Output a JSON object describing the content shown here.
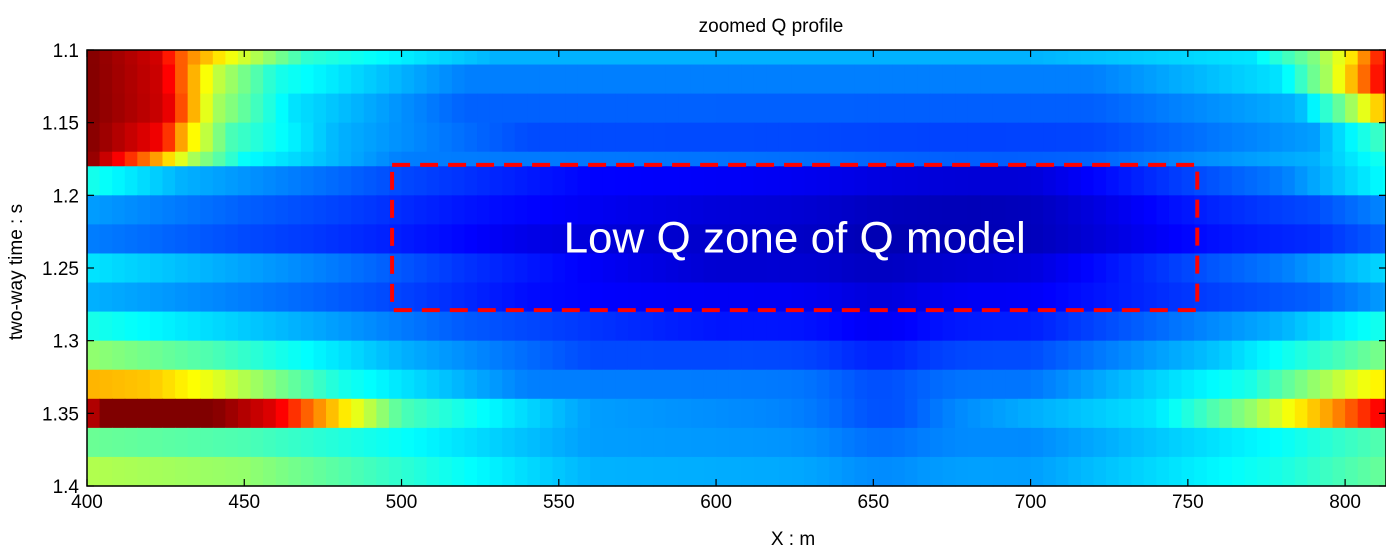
{
  "chart_data": {
    "type": "heatmap",
    "title": "zoomed Q profile",
    "xlabel": "X : m",
    "ylabel": "two-way time : s",
    "xlim": [
      400,
      813
    ],
    "ylim": [
      1.1,
      1.4
    ],
    "y_reversed": true,
    "x_ticks": [
      400,
      450,
      500,
      550,
      600,
      650,
      700,
      750,
      800
    ],
    "x_tick_labels": [
      "400",
      "450",
      "500",
      "550",
      "600",
      "650",
      "700",
      "750",
      "800"
    ],
    "y_ticks": [
      1.1,
      1.15,
      1.2,
      1.25,
      1.3,
      1.35,
      1.4
    ],
    "y_tick_labels": [
      "1.1",
      "1.15",
      "1.2",
      "1.25",
      "1.3",
      "1.35",
      "1.4"
    ],
    "colormap": "jet",
    "color_range": [
      0,
      1
    ],
    "grid": false,
    "rows": [
      {
        "t0": 1.1,
        "t1": 1.11,
        "profile": [
          [
            400,
            1.0
          ],
          [
            422,
            0.92
          ],
          [
            432,
            0.75
          ],
          [
            445,
            0.62
          ],
          [
            470,
            0.42
          ],
          [
            530,
            0.3
          ],
          [
            700,
            0.3
          ],
          [
            770,
            0.35
          ],
          [
            790,
            0.5
          ],
          [
            802,
            0.65
          ],
          [
            813,
            0.9
          ]
        ]
      },
      {
        "t0": 1.11,
        "t1": 1.13,
        "profile": [
          [
            400,
            1.0
          ],
          [
            424,
            0.92
          ],
          [
            432,
            0.74
          ],
          [
            440,
            0.58
          ],
          [
            460,
            0.4
          ],
          [
            520,
            0.25
          ],
          [
            720,
            0.25
          ],
          [
            780,
            0.35
          ],
          [
            795,
            0.55
          ],
          [
            805,
            0.75
          ],
          [
            813,
            0.92
          ]
        ]
      },
      {
        "t0": 1.13,
        "t1": 1.15,
        "profile": [
          [
            400,
            1.0
          ],
          [
            425,
            0.92
          ],
          [
            432,
            0.75
          ],
          [
            440,
            0.55
          ],
          [
            465,
            0.35
          ],
          [
            520,
            0.22
          ],
          [
            720,
            0.22
          ],
          [
            785,
            0.3
          ],
          [
            800,
            0.5
          ],
          [
            813,
            0.72
          ]
        ]
      },
      {
        "t0": 1.15,
        "t1": 1.17,
        "profile": [
          [
            400,
            1.0
          ],
          [
            424,
            0.88
          ],
          [
            432,
            0.66
          ],
          [
            445,
            0.45
          ],
          [
            480,
            0.3
          ],
          [
            540,
            0.2
          ],
          [
            720,
            0.2
          ],
          [
            790,
            0.28
          ],
          [
            813,
            0.45
          ]
        ]
      },
      {
        "t0": 1.17,
        "t1": 1.18,
        "profile": [
          [
            400,
            1.0
          ],
          [
            410,
            0.88
          ],
          [
            422,
            0.72
          ],
          [
            433,
            0.55
          ],
          [
            450,
            0.38
          ],
          [
            500,
            0.25
          ],
          [
            720,
            0.24
          ],
          [
            790,
            0.3
          ],
          [
            813,
            0.4
          ]
        ]
      },
      {
        "t0": 1.18,
        "t1": 1.2,
        "profile": [
          [
            400,
            0.4
          ],
          [
            430,
            0.3
          ],
          [
            500,
            0.2
          ],
          [
            560,
            0.14
          ],
          [
            700,
            0.13
          ],
          [
            780,
            0.25
          ],
          [
            813,
            0.38
          ]
        ]
      },
      {
        "t0": 1.2,
        "t1": 1.22,
        "profile": [
          [
            400,
            0.28
          ],
          [
            450,
            0.22
          ],
          [
            520,
            0.16
          ],
          [
            600,
            0.13
          ],
          [
            700,
            0.13
          ],
          [
            790,
            0.2
          ],
          [
            813,
            0.26
          ]
        ]
      },
      {
        "t0": 1.22,
        "t1": 1.24,
        "profile": [
          [
            400,
            0.25
          ],
          [
            450,
            0.2
          ],
          [
            540,
            0.14
          ],
          [
            700,
            0.13
          ],
          [
            790,
            0.17
          ],
          [
            813,
            0.22
          ]
        ]
      },
      {
        "t0": 1.24,
        "t1": 1.26,
        "profile": [
          [
            400,
            0.35
          ],
          [
            440,
            0.3
          ],
          [
            520,
            0.2
          ],
          [
            600,
            0.14
          ],
          [
            700,
            0.14
          ],
          [
            780,
            0.25
          ],
          [
            813,
            0.34
          ]
        ]
      },
      {
        "t0": 1.26,
        "t1": 1.28,
        "profile": [
          [
            400,
            0.3
          ],
          [
            460,
            0.24
          ],
          [
            540,
            0.16
          ],
          [
            700,
            0.14
          ],
          [
            790,
            0.22
          ],
          [
            813,
            0.28
          ]
        ]
      },
      {
        "t0": 1.28,
        "t1": 1.3,
        "profile": [
          [
            400,
            0.4
          ],
          [
            440,
            0.34
          ],
          [
            520,
            0.22
          ],
          [
            600,
            0.16
          ],
          [
            700,
            0.16
          ],
          [
            780,
            0.3
          ],
          [
            813,
            0.4
          ]
        ]
      },
      {
        "t0": 1.3,
        "t1": 1.32,
        "profile": [
          [
            400,
            0.52
          ],
          [
            440,
            0.45
          ],
          [
            500,
            0.3
          ],
          [
            560,
            0.2
          ],
          [
            700,
            0.2
          ],
          [
            760,
            0.32
          ],
          [
            800,
            0.45
          ],
          [
            813,
            0.5
          ]
        ]
      },
      {
        "t0": 1.32,
        "t1": 1.34,
        "profile": [
          [
            400,
            0.7
          ],
          [
            420,
            0.68
          ],
          [
            440,
            0.6
          ],
          [
            480,
            0.4
          ],
          [
            540,
            0.25
          ],
          [
            700,
            0.24
          ],
          [
            770,
            0.4
          ],
          [
            800,
            0.58
          ],
          [
            813,
            0.65
          ]
        ]
      },
      {
        "t0": 1.34,
        "t1": 1.36,
        "profile": [
          [
            400,
            0.92
          ],
          [
            405,
            1.0
          ],
          [
            440,
            1.0
          ],
          [
            460,
            0.9
          ],
          [
            475,
            0.72
          ],
          [
            500,
            0.45
          ],
          [
            560,
            0.28
          ],
          [
            660,
            0.24
          ],
          [
            740,
            0.35
          ],
          [
            770,
            0.52
          ],
          [
            795,
            0.72
          ],
          [
            808,
            0.85
          ],
          [
            813,
            0.9
          ]
        ]
      },
      {
        "t0": 1.36,
        "t1": 1.38,
        "profile": [
          [
            400,
            0.48
          ],
          [
            450,
            0.45
          ],
          [
            500,
            0.38
          ],
          [
            560,
            0.28
          ],
          [
            700,
            0.26
          ],
          [
            780,
            0.38
          ],
          [
            813,
            0.46
          ]
        ]
      },
      {
        "t0": 1.38,
        "t1": 1.4,
        "profile": [
          [
            400,
            0.55
          ],
          [
            450,
            0.52
          ],
          [
            500,
            0.42
          ],
          [
            560,
            0.3
          ],
          [
            700,
            0.28
          ],
          [
            780,
            0.4
          ],
          [
            813,
            0.48
          ]
        ]
      }
    ],
    "low_zones": [
      {
        "x": 590,
        "t": 1.24,
        "sx": 55,
        "st": 0.03,
        "depth": 0.06
      },
      {
        "x": 690,
        "t": 1.22,
        "sx": 40,
        "st": 0.03,
        "depth": 0.07
      },
      {
        "x": 652,
        "t": 1.33,
        "sx": 12,
        "st": 0.06,
        "depth": 0.04
      }
    ],
    "annotation": {
      "text": "Low Q zone of Q model",
      "box_x": [
        497,
        753
      ],
      "box_t": [
        1.179,
        1.279
      ],
      "box_color": "#ff0000"
    }
  }
}
